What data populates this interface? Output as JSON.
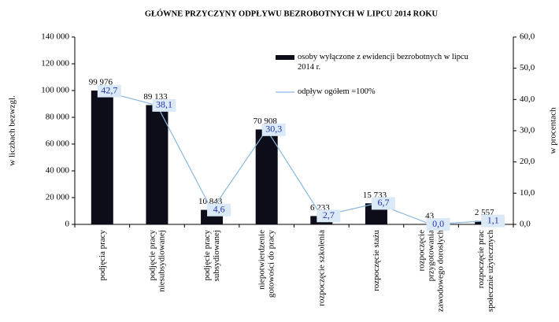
{
  "chart_data": {
    "type": "bar_line",
    "title": "GŁÓWNE  PRZYCZYNY  ODPŁYWU  BEZROBOTNYCH   W LIPCU 2014  ROKU",
    "ylabel": "w liczbach bezwzgl.",
    "y2label": "w procentach",
    "categories": [
      "podjęcia pracy",
      "podjęcie pracy niesubsydiowanej",
      "podjęcie pracy subsydiowanej",
      "niepotwierdzenie gotowości do pracy",
      "rozpoczęcie szkolenia",
      "rozpoczęcie stażu",
      "rozpoczęcie przygotowania zawodowego dorosłych",
      "rozpoczęcie prac społecznie użytecznych"
    ],
    "series": [
      {
        "name": "osoby wyłączone  z ewidencji  bezrobotnych w lipcu  2014 r.",
        "color": "#0d0d1a",
        "kind": "bar",
        "values": [
          99976,
          89133,
          10843,
          70908,
          6233,
          15733,
          43,
          2557
        ],
        "value_labels": [
          "99 976",
          "89 133",
          "10 843",
          "70 908",
          "6 233",
          "15 733",
          "43",
          "2 557"
        ]
      },
      {
        "name": "odpływ ogółem =100%",
        "color": "#8ab8e0",
        "kind": "line",
        "axis": "y2",
        "values": [
          42.7,
          38.1,
          4.6,
          30.3,
          2.7,
          6.7,
          0.0,
          1.1
        ],
        "value_labels": [
          "42,7",
          "38,1",
          "4,6",
          "30,3",
          "2,7",
          "6,7",
          "0,0",
          "1,1"
        ]
      }
    ],
    "ylim": [
      0,
      140000
    ],
    "yticks": [
      0,
      {
        "value": 20000,
        "label": "20 000"
      },
      {
        "value": 40000,
        "label": "40 000"
      },
      {
        "value": 60000,
        "label": "60 000"
      },
      {
        "value": 80000,
        "label": "80 000"
      },
      {
        "value": 100000,
        "label": "100 000"
      },
      {
        "value": 120000,
        "label": "120 000"
      },
      {
        "value": 140000,
        "label": "140 000"
      }
    ],
    "y2lim": [
      0,
      60
    ],
    "y2ticks": [
      {
        "value": 0,
        "label": "0,0"
      },
      {
        "value": 10,
        "label": "10,0"
      },
      {
        "value": 20,
        "label": "20,0"
      },
      {
        "value": 30,
        "label": "30,0"
      },
      {
        "value": 40,
        "label": "40,0"
      },
      {
        "value": 50,
        "label": "50,0"
      },
      {
        "value": 60,
        "label": "60,0"
      }
    ]
  }
}
